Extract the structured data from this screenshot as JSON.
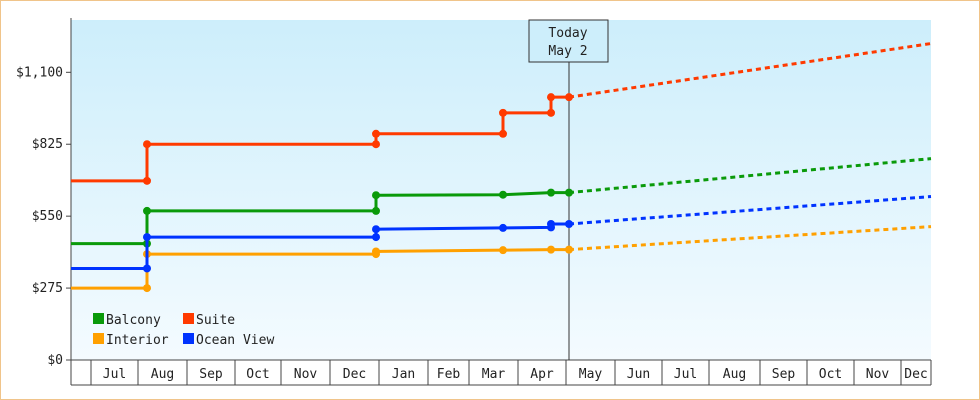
{
  "chart_data": {
    "type": "line",
    "title": "",
    "xlabel": "",
    "ylabel": "",
    "ylim": [
      0,
      1300
    ],
    "y_ticks": [
      0,
      275,
      550,
      825,
      1100
    ],
    "y_tick_labels": [
      "$0",
      "$275",
      "$550",
      "$825",
      "$1,100"
    ],
    "x_tick_labels": [
      "Jul",
      "Aug",
      "Sep",
      "Oct",
      "Nov",
      "Dec",
      "Jan",
      "Feb",
      "Mar",
      "Apr",
      "May",
      "Jun",
      "Jul",
      "Aug",
      "Sep",
      "Oct",
      "Nov",
      "Dec"
    ],
    "today_marker": {
      "line1": "Today",
      "line2": "May 2"
    },
    "grid": false,
    "background": "light-blue gradient",
    "legend_position": "bottom-left",
    "series": [
      {
        "name": "Balcony",
        "color": "#0a9a0a",
        "history": [
          [
            "Jun",
            445
          ],
          [
            "Aug",
            445
          ],
          [
            "Aug",
            570
          ],
          [
            "Dec",
            570
          ],
          [
            "Dec",
            630
          ],
          [
            "Mar",
            632
          ],
          [
            "Apr",
            640
          ],
          [
            "May",
            640
          ]
        ],
        "projection": [
          [
            "May",
            640
          ],
          [
            "Dec",
            770
          ]
        ]
      },
      {
        "name": "Suite",
        "color": "#ff3a00",
        "history": [
          [
            "Jun",
            685
          ],
          [
            "Aug",
            685
          ],
          [
            "Aug",
            825
          ],
          [
            "Dec",
            825
          ],
          [
            "Dec",
            865
          ],
          [
            "Mar",
            865
          ],
          [
            "Mar",
            945
          ],
          [
            "Apr",
            945
          ],
          [
            "Apr",
            1005
          ],
          [
            "May",
            1005
          ]
        ],
        "projection": [
          [
            "May",
            1005
          ],
          [
            "Dec",
            1210
          ]
        ]
      },
      {
        "name": "Interior",
        "color": "#ffa000",
        "history": [
          [
            "Jun",
            275
          ],
          [
            "Aug",
            275
          ],
          [
            "Aug",
            405
          ],
          [
            "Dec",
            405
          ],
          [
            "Dec",
            415
          ],
          [
            "Mar",
            420
          ],
          [
            "Apr",
            422
          ],
          [
            "May",
            422
          ]
        ],
        "projection": [
          [
            "May",
            422
          ],
          [
            "Dec",
            510
          ]
        ]
      },
      {
        "name": "Ocean View",
        "color": "#0033ff",
        "history": [
          [
            "Jun",
            350
          ],
          [
            "Aug",
            350
          ],
          [
            "Aug",
            470
          ],
          [
            "Dec",
            470
          ],
          [
            "Dec",
            500
          ],
          [
            "Mar",
            505
          ],
          [
            "Apr",
            507
          ],
          [
            "Apr",
            520
          ],
          [
            "May",
            520
          ]
        ],
        "projection": [
          [
            "May",
            520
          ],
          [
            "Dec",
            625
          ]
        ]
      }
    ]
  }
}
